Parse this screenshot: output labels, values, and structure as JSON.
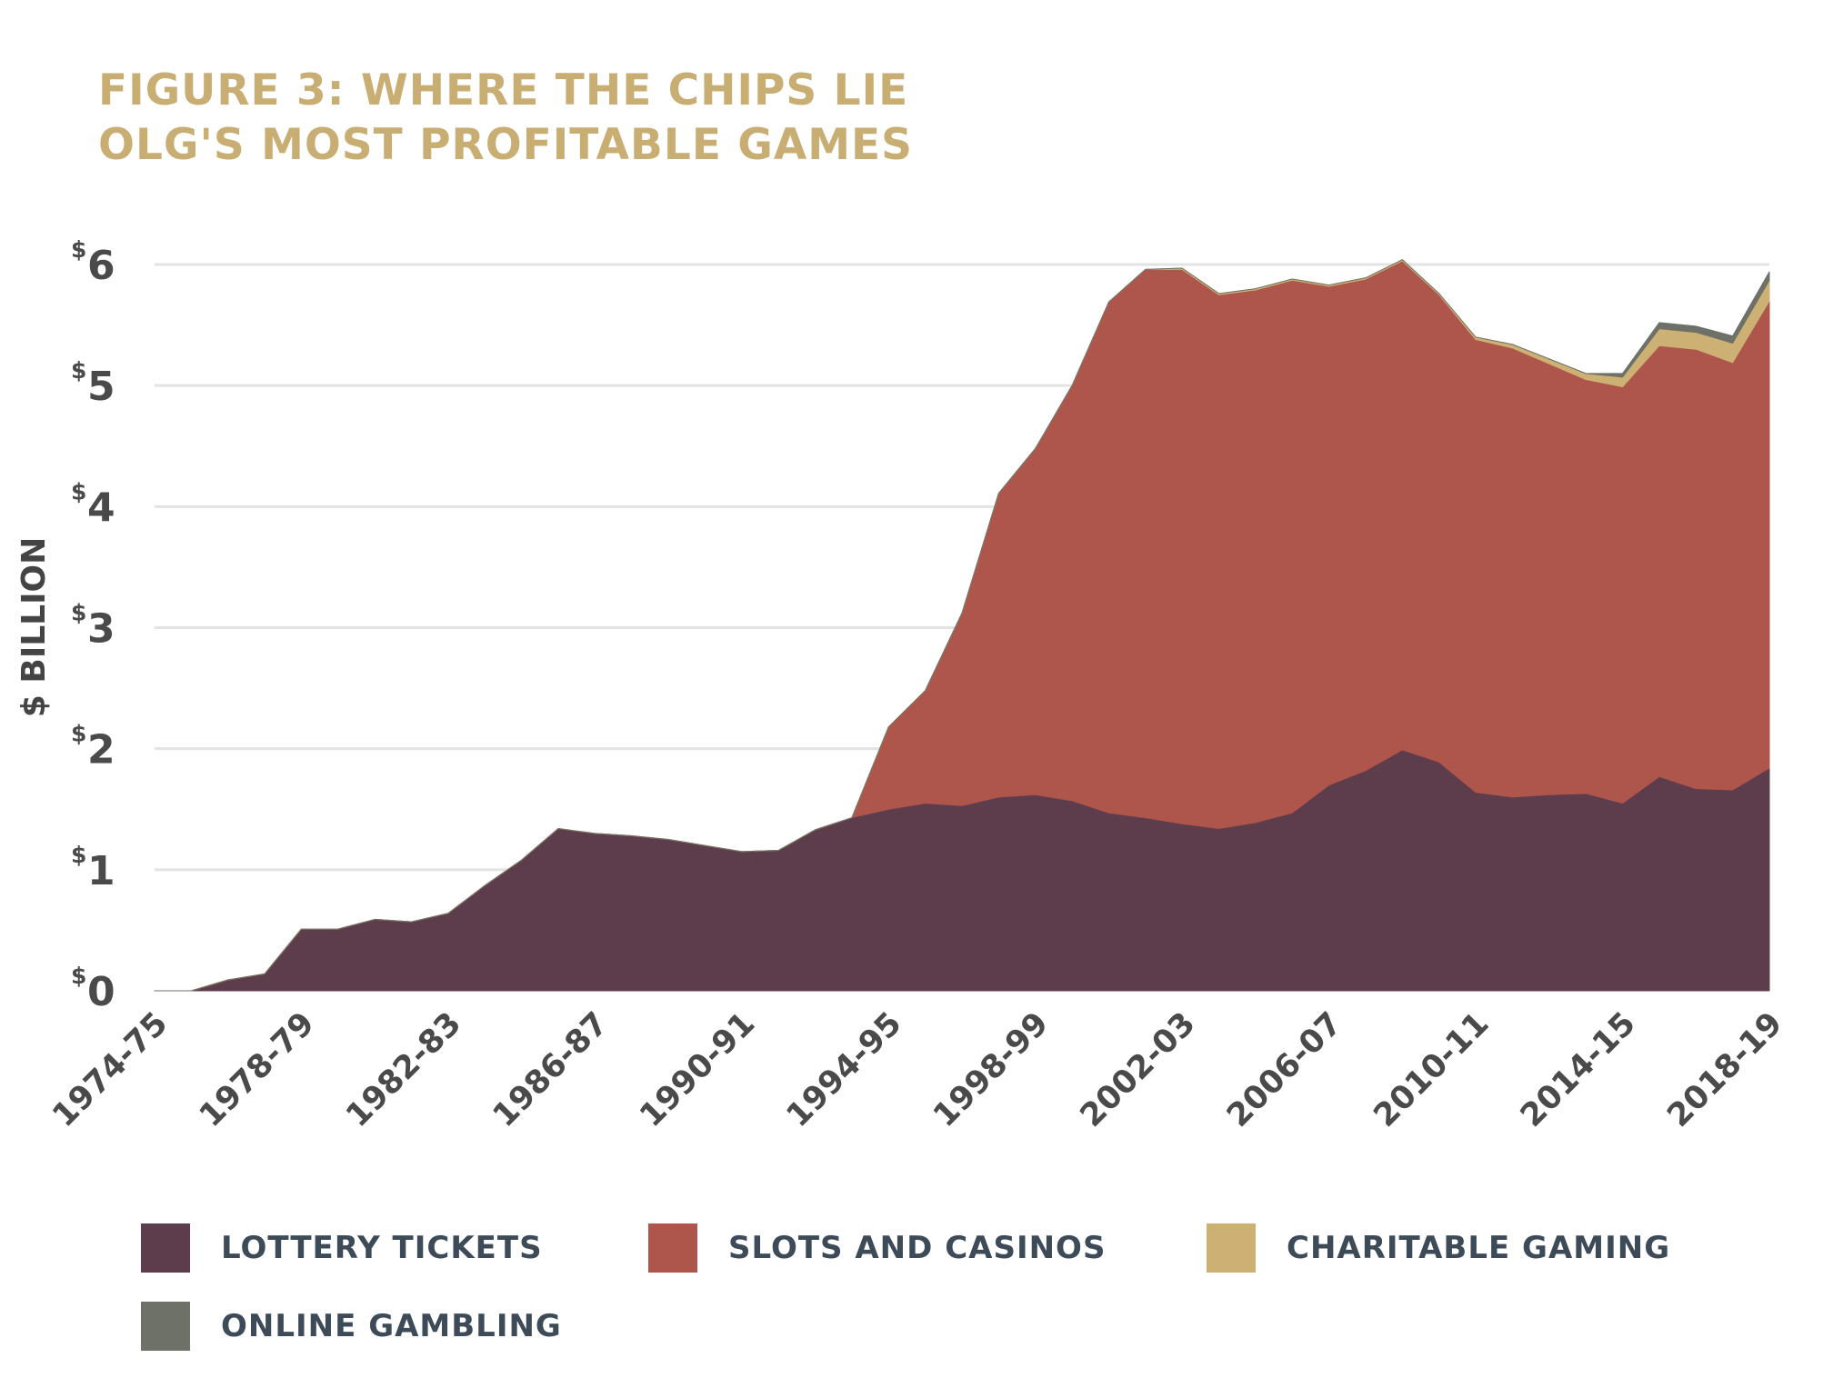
{
  "title": {
    "line1": "FIGURE 3: WHERE THE CHIPS LIE",
    "line2": "OLG'S MOST PROFITABLE GAMES"
  },
  "colors": {
    "title": "#c9ae73",
    "lottery": "#5d3d4b",
    "slots": "#ae554c",
    "charitable": "#cdb073",
    "online": "#6e7168",
    "grid": "#e3e3e3",
    "axis_text": "#4a4a4a",
    "legend_text": "#3d4a57"
  },
  "chart_data": {
    "type": "area",
    "stacked": true,
    "title": "FIGURE 3: WHERE THE CHIPS LIE / OLG'S MOST PROFITABLE GAMES",
    "ylabel": "$ BILLION",
    "xlabel": "",
    "ylim": [
      0,
      6
    ],
    "yticks": [
      0,
      1,
      2,
      3,
      4,
      5,
      6
    ],
    "ytick_prefix": "$",
    "grid": true,
    "x": [
      "1974-75",
      "1975-76",
      "1976-77",
      "1977-78",
      "1978-79",
      "1979-80",
      "1980-81",
      "1981-82",
      "1982-83",
      "1983-84",
      "1984-85",
      "1985-86",
      "1986-87",
      "1987-88",
      "1988-89",
      "1989-90",
      "1990-91",
      "1991-92",
      "1992-93",
      "1993-94",
      "1994-95",
      "1995-96",
      "1996-97",
      "1997-98",
      "1998-99",
      "1999-00",
      "2000-01",
      "2001-02",
      "2002-03",
      "2003-04",
      "2004-05",
      "2005-06",
      "2006-07",
      "2007-08",
      "2008-09",
      "2009-10",
      "2010-11",
      "2011-12",
      "2012-13",
      "2013-14",
      "2014-15",
      "2015-16",
      "2016-17",
      "2017-18",
      "2018-19"
    ],
    "xtick_labels": [
      "1974-75",
      "1978-79",
      "1982-83",
      "1986-87",
      "1990-91",
      "1994-95",
      "1998-99",
      "2002-03",
      "2006-07",
      "2010-11",
      "2014-15",
      "2018-19"
    ],
    "series": [
      {
        "name": "LOTTERY TICKETS",
        "color": "#5d3d4b",
        "values": [
          0,
          0,
          0.09,
          0.14,
          0.51,
          0.51,
          0.59,
          0.57,
          0.64,
          0.87,
          1.08,
          1.34,
          1.3,
          1.28,
          1.25,
          1.2,
          1.15,
          1.16,
          1.33,
          1.43,
          1.5,
          1.55,
          1.53,
          1.6,
          1.62,
          1.57,
          1.47,
          1.43,
          1.38,
          1.34,
          1.39,
          1.47,
          1.7,
          1.82,
          1.99,
          1.89,
          1.64,
          1.6,
          1.62,
          1.63,
          1.55,
          1.77,
          1.67,
          1.66,
          1.84
        ]
      },
      {
        "name": "SLOTS AND CASINOS",
        "color": "#ae554c",
        "values": [
          0,
          0,
          0,
          0,
          0,
          0,
          0,
          0,
          0,
          0,
          0,
          0,
          0,
          0,
          0,
          0,
          0,
          0,
          0,
          0,
          0.68,
          0.93,
          1.59,
          2.51,
          2.86,
          3.43,
          4.22,
          4.53,
          4.58,
          4.41,
          4.4,
          4.4,
          4.12,
          4.06,
          4.04,
          3.86,
          3.74,
          3.71,
          3.56,
          3.42,
          3.44,
          3.56,
          3.63,
          3.53,
          3.86
        ]
      },
      {
        "name": "CHARITABLE GAMING",
        "color": "#cdb073",
        "values": [
          0,
          0,
          0,
          0,
          0,
          0,
          0,
          0,
          0,
          0,
          0,
          0,
          0,
          0,
          0,
          0,
          0,
          0,
          0,
          0,
          0,
          0,
          0,
          0,
          0,
          0,
          0,
          0,
          0.01,
          0.01,
          0.01,
          0.01,
          0.01,
          0.01,
          0.01,
          0.01,
          0.02,
          0.03,
          0.04,
          0.05,
          0.08,
          0.14,
          0.14,
          0.16,
          0.17
        ]
      },
      {
        "name": "ONLINE GAMBLING",
        "color": "#6e7168",
        "values": [
          0,
          0,
          0,
          0,
          0,
          0,
          0,
          0,
          0,
          0,
          0,
          0,
          0,
          0,
          0,
          0,
          0,
          0,
          0,
          0,
          0,
          0,
          0,
          0,
          0,
          0,
          0,
          0,
          0,
          0,
          0,
          0,
          0,
          0,
          0,
          0,
          0,
          0,
          0,
          0,
          0.03,
          0.05,
          0.05,
          0.06,
          0.07
        ]
      }
    ],
    "legend": {
      "position": "bottom",
      "items": [
        "LOTTERY TICKETS",
        "SLOTS AND CASINOS",
        "CHARITABLE GAMING",
        "ONLINE GAMBLING"
      ]
    }
  }
}
